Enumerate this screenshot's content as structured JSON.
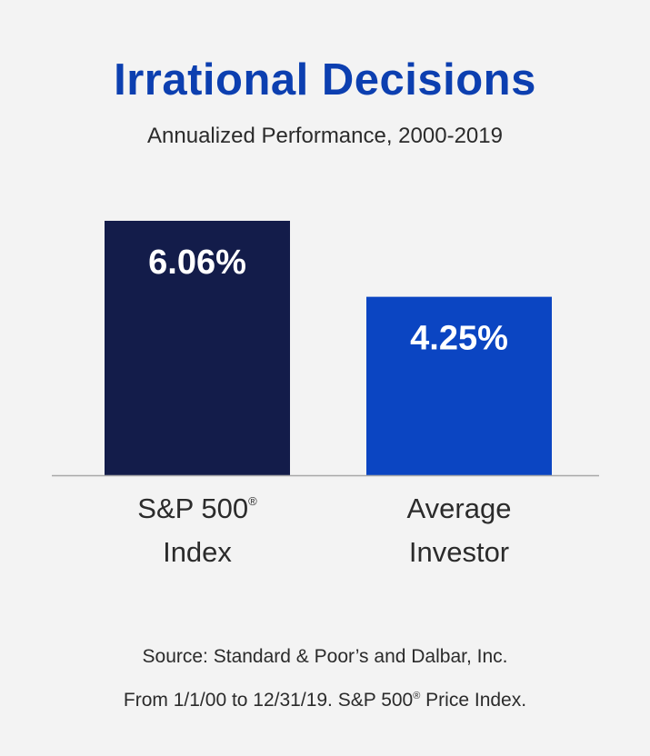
{
  "header": {
    "title": "Irrational Decisions",
    "subtitle": "Annualized Performance, 2000-2019"
  },
  "footer": {
    "source_line1": "Source: Standard & Poor’s and Dalbar, Inc.",
    "source_line2_prefix": "From 1/1/00 to 12/31/19. S&P 500",
    "source_line2_suffix": " Price Index.",
    "registered_mark": "®"
  },
  "colors": {
    "background": "#f3f3f3",
    "title": "#0c3fb0",
    "bar_dark": "#131c4a",
    "bar_blue": "#0b45c2",
    "baseline": "#a8a8a8",
    "text": "#2b2b2b"
  },
  "chart_data": {
    "type": "bar",
    "categories": [
      {
        "line1": "S&P 500",
        "line1_mark": "®",
        "line2": "Index"
      },
      {
        "line1": "Average",
        "line1_mark": "",
        "line2": "Investor"
      }
    ],
    "values": [
      6.06,
      4.25
    ],
    "value_labels": [
      "6.06%",
      "4.25%"
    ],
    "bar_colors": [
      "#131c4a",
      "#0b45c2"
    ],
    "ylim": [
      0,
      6.06
    ],
    "grid": false,
    "legend": "none"
  }
}
